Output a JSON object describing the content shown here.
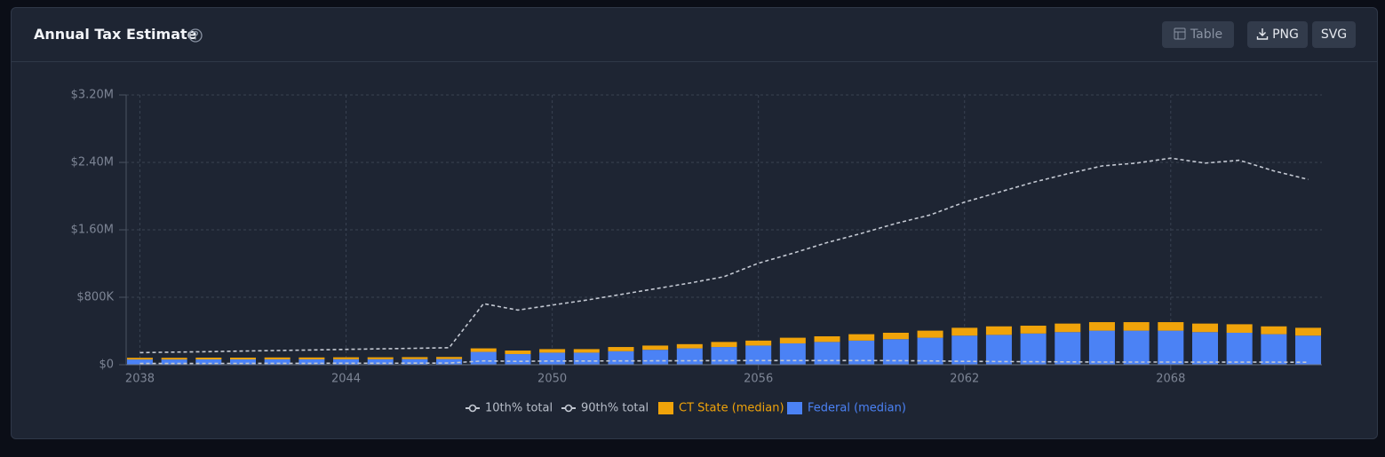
{
  "header": {
    "title": "Annual Tax Estimate",
    "buttons": [
      "Table",
      "PNG",
      "SVG"
    ]
  },
  "chart_data": {
    "type": "bar",
    "stacked": true,
    "x": [
      2038,
      2039,
      2040,
      2041,
      2042,
      2043,
      2044,
      2045,
      2046,
      2047,
      2048,
      2049,
      2050,
      2051,
      2052,
      2053,
      2054,
      2055,
      2056,
      2057,
      2058,
      2059,
      2060,
      2061,
      2062,
      2063,
      2064,
      2065,
      2066,
      2067,
      2068,
      2069,
      2070,
      2071,
      2072
    ],
    "xlim": [
      2037.6,
      2072.4
    ],
    "xticks": [
      2038,
      2044,
      2050,
      2056,
      2062,
      2068
    ],
    "ylim": [
      0,
      3200000
    ],
    "yticks": [
      {
        "value": 0,
        "label": "$0"
      },
      {
        "value": 800000,
        "label": "$800K"
      },
      {
        "value": 1600000,
        "label": "$1.60M"
      },
      {
        "value": 2400000,
        "label": "$2.40M"
      },
      {
        "value": 3200000,
        "label": "$3.20M"
      }
    ],
    "grid": true,
    "series": [
      {
        "name": "10th% total",
        "type": "line",
        "color": "#c3c8d2",
        "values": [
          15000,
          15000,
          16000,
          16000,
          17000,
          17000,
          18000,
          18000,
          19000,
          20000,
          45000,
          40000,
          44000,
          44000,
          45000,
          46000,
          47000,
          48000,
          49000,
          50000,
          50000,
          50000,
          48000,
          45000,
          40000,
          38000,
          36000,
          34000,
          32000,
          32000,
          32000,
          31000,
          30000,
          30000,
          29000
        ]
      },
      {
        "name": "90th% total",
        "type": "line",
        "color": "#c3c8d2",
        "values": [
          143000,
          150000,
          155000,
          162000,
          168000,
          175000,
          182000,
          188000,
          195000,
          202000,
          724000,
          648000,
          707000,
          766000,
          834000,
          901000,
          968000,
          1044000,
          1204000,
          1322000,
          1448000,
          1558000,
          1676000,
          1777000,
          1928000,
          2046000,
          2164000,
          2265000,
          2358000,
          2392000,
          2451000,
          2392000,
          2425000,
          2299000,
          2198000
        ]
      },
      {
        "name": "CT State (median)",
        "type": "bar",
        "color": "#f0a30a",
        "values": [
          20000,
          20000,
          21000,
          21000,
          22000,
          22000,
          23000,
          23000,
          24000,
          25000,
          42000,
          42000,
          42000,
          42000,
          50000,
          50000,
          50000,
          60000,
          59000,
          67000,
          67000,
          76000,
          76000,
          84000,
          93000,
          101000,
          93000,
          101000,
          101000,
          101000,
          101000,
          101000,
          101000,
          93000,
          93000
        ]
      },
      {
        "name": "Federal (median)",
        "type": "bar",
        "color": "#4b82f5",
        "values": [
          62000,
          62000,
          63000,
          63000,
          64000,
          64000,
          65000,
          65000,
          66000,
          67000,
          152000,
          126000,
          143000,
          143000,
          160000,
          177000,
          194000,
          210000,
          227000,
          253000,
          270000,
          286000,
          303000,
          320000,
          345000,
          354000,
          370000,
          387000,
          404000,
          404000,
          404000,
          387000,
          379000,
          362000,
          345000
        ]
      }
    ]
  }
}
